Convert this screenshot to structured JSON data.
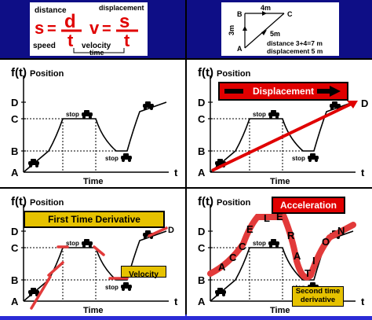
{
  "formula": {
    "distance": "distance",
    "displacement": "displacement",
    "s": "s",
    "d": "d",
    "t": "t",
    "v": "v",
    "eq": "=",
    "speed": "speed",
    "velocity": "velocity",
    "time": "time"
  },
  "triangle": {
    "a": "A",
    "b": "B",
    "c": "C",
    "ab": "3m",
    "bc": "4m",
    "ac": "5m",
    "distance_line": "distance 3+4=7 m",
    "displacement_line": "displacement 5 m"
  },
  "panels": [
    {
      "ft": "f(t)",
      "title": "Position",
      "banner": ""
    },
    {
      "ft": "f(t)",
      "title": "Position",
      "banner": "Displacement"
    },
    {
      "ft": "f(t)",
      "title": "Position",
      "banner": "First Time Derivative",
      "note": "Velocity"
    },
    {
      "ft": "f(t)",
      "title": "Position",
      "banner": "Acceleration",
      "note": "Second time derivative",
      "word": [
        "A",
        "C",
        "C",
        "E",
        "L",
        "E",
        "R",
        "A",
        "T",
        "I",
        "O",
        "N"
      ]
    }
  ],
  "axes": {
    "ticks": [
      "D",
      "C",
      "B",
      "A"
    ],
    "x_end": "t",
    "x_label": "Time",
    "stop": "stop"
  },
  "colors": {
    "band": "#0e0e86",
    "background": "#2b2bd6",
    "formula_red": "#e00000",
    "curve": "#000000",
    "highlight": "#e23a3a"
  }
}
